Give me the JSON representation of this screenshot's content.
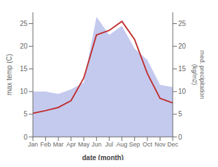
{
  "chart_data": {
    "type": "line",
    "categories": [
      "Jan",
      "Feb",
      "Mar",
      "Apr",
      "May",
      "Jun",
      "Jul",
      "Aug",
      "Sep",
      "Oct",
      "Nov",
      "Dec"
    ],
    "series": [
      {
        "type": "area",
        "axis": "y2",
        "color": "#b0b8e8",
        "values": [
          10.0,
          10.0,
          9.5,
          10.5,
          12.0,
          26.5,
          22.5,
          24.5,
          19.5,
          17.0,
          11.5,
          11.0
        ]
      },
      {
        "type": "line",
        "color": "#c03030",
        "values": [
          5.2,
          5.8,
          6.5,
          8.0,
          13.0,
          22.5,
          23.5,
          25.5,
          21.5,
          14.0,
          8.5,
          7.5
        ]
      }
    ],
    "xlabel": "date (month)",
    "ylabel": "max temp (C)",
    "y2label": "med. precipitation\n(kg/m2)",
    "ylim": [
      0,
      27.5
    ],
    "yticks": [
      0,
      5,
      10,
      15,
      20,
      25
    ],
    "y2lim": [
      0,
      27.5
    ],
    "y2ticks": [
      0,
      5,
      10,
      15,
      20,
      25
    ],
    "grid": false
  }
}
